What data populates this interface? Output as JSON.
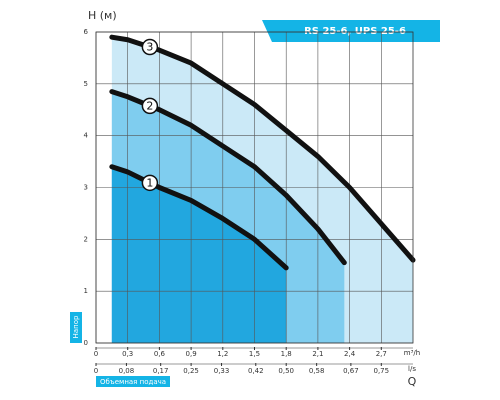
{
  "chart_data": {
    "type": "line",
    "title": "RS 25-6, UPS 25-6",
    "y_label": "H (м)",
    "y_axis_name": "Напор",
    "x_label": "Q",
    "x_axis_name": "Объемная подача",
    "x_unit": "m³/h",
    "x2_unit": "l/s",
    "xlim": [
      0,
      3
    ],
    "xticks": [
      0,
      {
        "value": 0.3,
        "label": "0,3"
      },
      {
        "value": 0.6,
        "label": "0,6"
      },
      {
        "value": 0.9,
        "label": "0,9"
      },
      {
        "value": 1.2,
        "label": "1,2"
      },
      {
        "value": 1.5,
        "label": "1,5"
      },
      {
        "value": 1.8,
        "label": "1,8"
      },
      {
        "value": 2.1,
        "label": "2,1"
      },
      {
        "value": 2.4,
        "label": "2,4"
      },
      {
        "value": 2.7,
        "label": "2,7"
      }
    ],
    "x2lim": [
      0,
      0.8333
    ],
    "x2ticks": [
      0,
      {
        "value": 0.08,
        "label": "0,08"
      },
      {
        "value": 0.17,
        "label": "0,17"
      },
      {
        "value": 0.25,
        "label": "0,25"
      },
      {
        "value": 0.33,
        "label": "0,33"
      },
      {
        "value": 0.42,
        "label": "0,42"
      },
      {
        "value": 0.5,
        "label": "0,50"
      },
      {
        "value": 0.58,
        "label": "0,58"
      },
      {
        "value": 0.67,
        "label": "0,67"
      },
      {
        "value": 0.75,
        "label": "0,75"
      }
    ],
    "ylim": [
      0,
      6
    ],
    "yticks": [
      0,
      1,
      2,
      3,
      4,
      5,
      6
    ],
    "grid": true,
    "series": [
      {
        "name": "1",
        "color": "#22a7df",
        "x": [
          0.15,
          0.3,
          0.6,
          0.9,
          1.2,
          1.5,
          1.8
        ],
        "values": [
          3.4,
          3.3,
          3.0,
          2.75,
          2.4,
          2.0,
          1.45
        ]
      },
      {
        "name": "2",
        "color": "#7fcdef",
        "x": [
          0.15,
          0.3,
          0.6,
          0.9,
          1.2,
          1.5,
          1.8,
          2.1,
          2.35
        ],
        "values": [
          4.85,
          4.75,
          4.5,
          4.2,
          3.8,
          3.4,
          2.85,
          2.2,
          1.55
        ]
      },
      {
        "name": "3",
        "color": "#cbe9f7",
        "x": [
          0.15,
          0.3,
          0.6,
          0.9,
          1.2,
          1.5,
          1.8,
          2.1,
          2.4,
          2.7,
          3.0
        ],
        "values": [
          5.9,
          5.85,
          5.65,
          5.4,
          5.0,
          4.6,
          4.1,
          3.6,
          3.0,
          2.3,
          1.6
        ]
      }
    ]
  }
}
